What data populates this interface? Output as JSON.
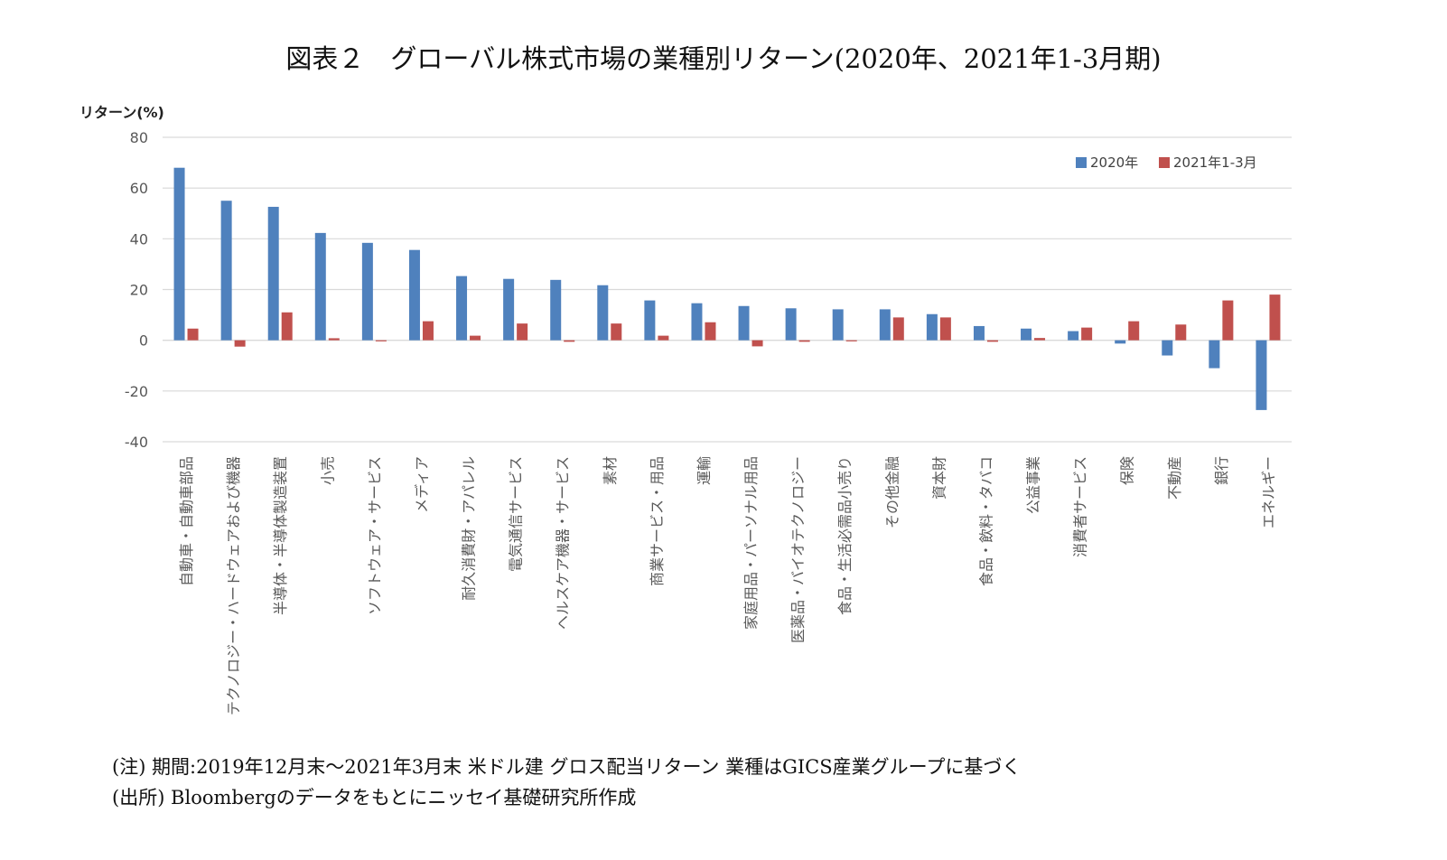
{
  "header": {
    "title": "図表２　グローバル株式市場の業種別リターン(2020年、2021年1-3月期)"
  },
  "footer": {
    "note": "(注) 期間:2019年12月末～2021年3月末 米ドル建 グロス配当リターン 業種はGICS産業グループに基づく",
    "source": "(出所) Bloombergのデータをもとにニッセイ基礎研究所作成"
  },
  "chart_data": {
    "type": "bar",
    "title": "図表２　グローバル株式市場の業種別リターン(2020年、2021年1-3月期)",
    "xlabel": "",
    "ylabel": "リターン(%)",
    "ylim": [
      -40,
      80
    ],
    "yticks": [
      80,
      60,
      40,
      20,
      0,
      -20,
      -40
    ],
    "grid": true,
    "legend_position": "top-right",
    "categories": [
      "自動車・自動車部品",
      "テクノロジー・ハードウェアおよび機器",
      "半導体・半導体製造装置",
      "小売",
      "ソフトウェア・サービス",
      "メディア",
      "耐久消費財・アパレル",
      "電気通信サービス",
      "ヘルスケア機器・サービス",
      "素材",
      "商業サービス・用品",
      "運輸",
      "家庭用品・パーソナル用品",
      "医薬品・バイオテクノロジー",
      "食品・生活必需品小売り",
      "その他金融",
      "資本財",
      "食品・飲料・タバコ",
      "公益事業",
      "消費者サービス",
      "保険",
      "不動産",
      "銀行",
      "エネルギー"
    ],
    "series": [
      {
        "name": "2020年",
        "color": "#4f81bd",
        "values": [
          68.0,
          55.0,
          52.6,
          42.3,
          38.4,
          35.6,
          25.3,
          24.2,
          23.8,
          21.7,
          15.7,
          14.6,
          13.5,
          12.6,
          12.2,
          12.2,
          10.3,
          5.6,
          4.6,
          3.6,
          -1.3,
          -6.0,
          -11.0,
          -27.5
        ]
      },
      {
        "name": "2021年1-3月",
        "color": "#c0504d",
        "values": [
          4.6,
          -2.5,
          11.0,
          0.8,
          -0.3,
          7.5,
          1.8,
          6.6,
          -0.6,
          6.6,
          1.8,
          7.1,
          -2.4,
          -0.6,
          -0.4,
          9.0,
          9.0,
          -0.6,
          0.9,
          5.0,
          7.5,
          6.2,
          15.7,
          18.0
        ]
      }
    ]
  }
}
